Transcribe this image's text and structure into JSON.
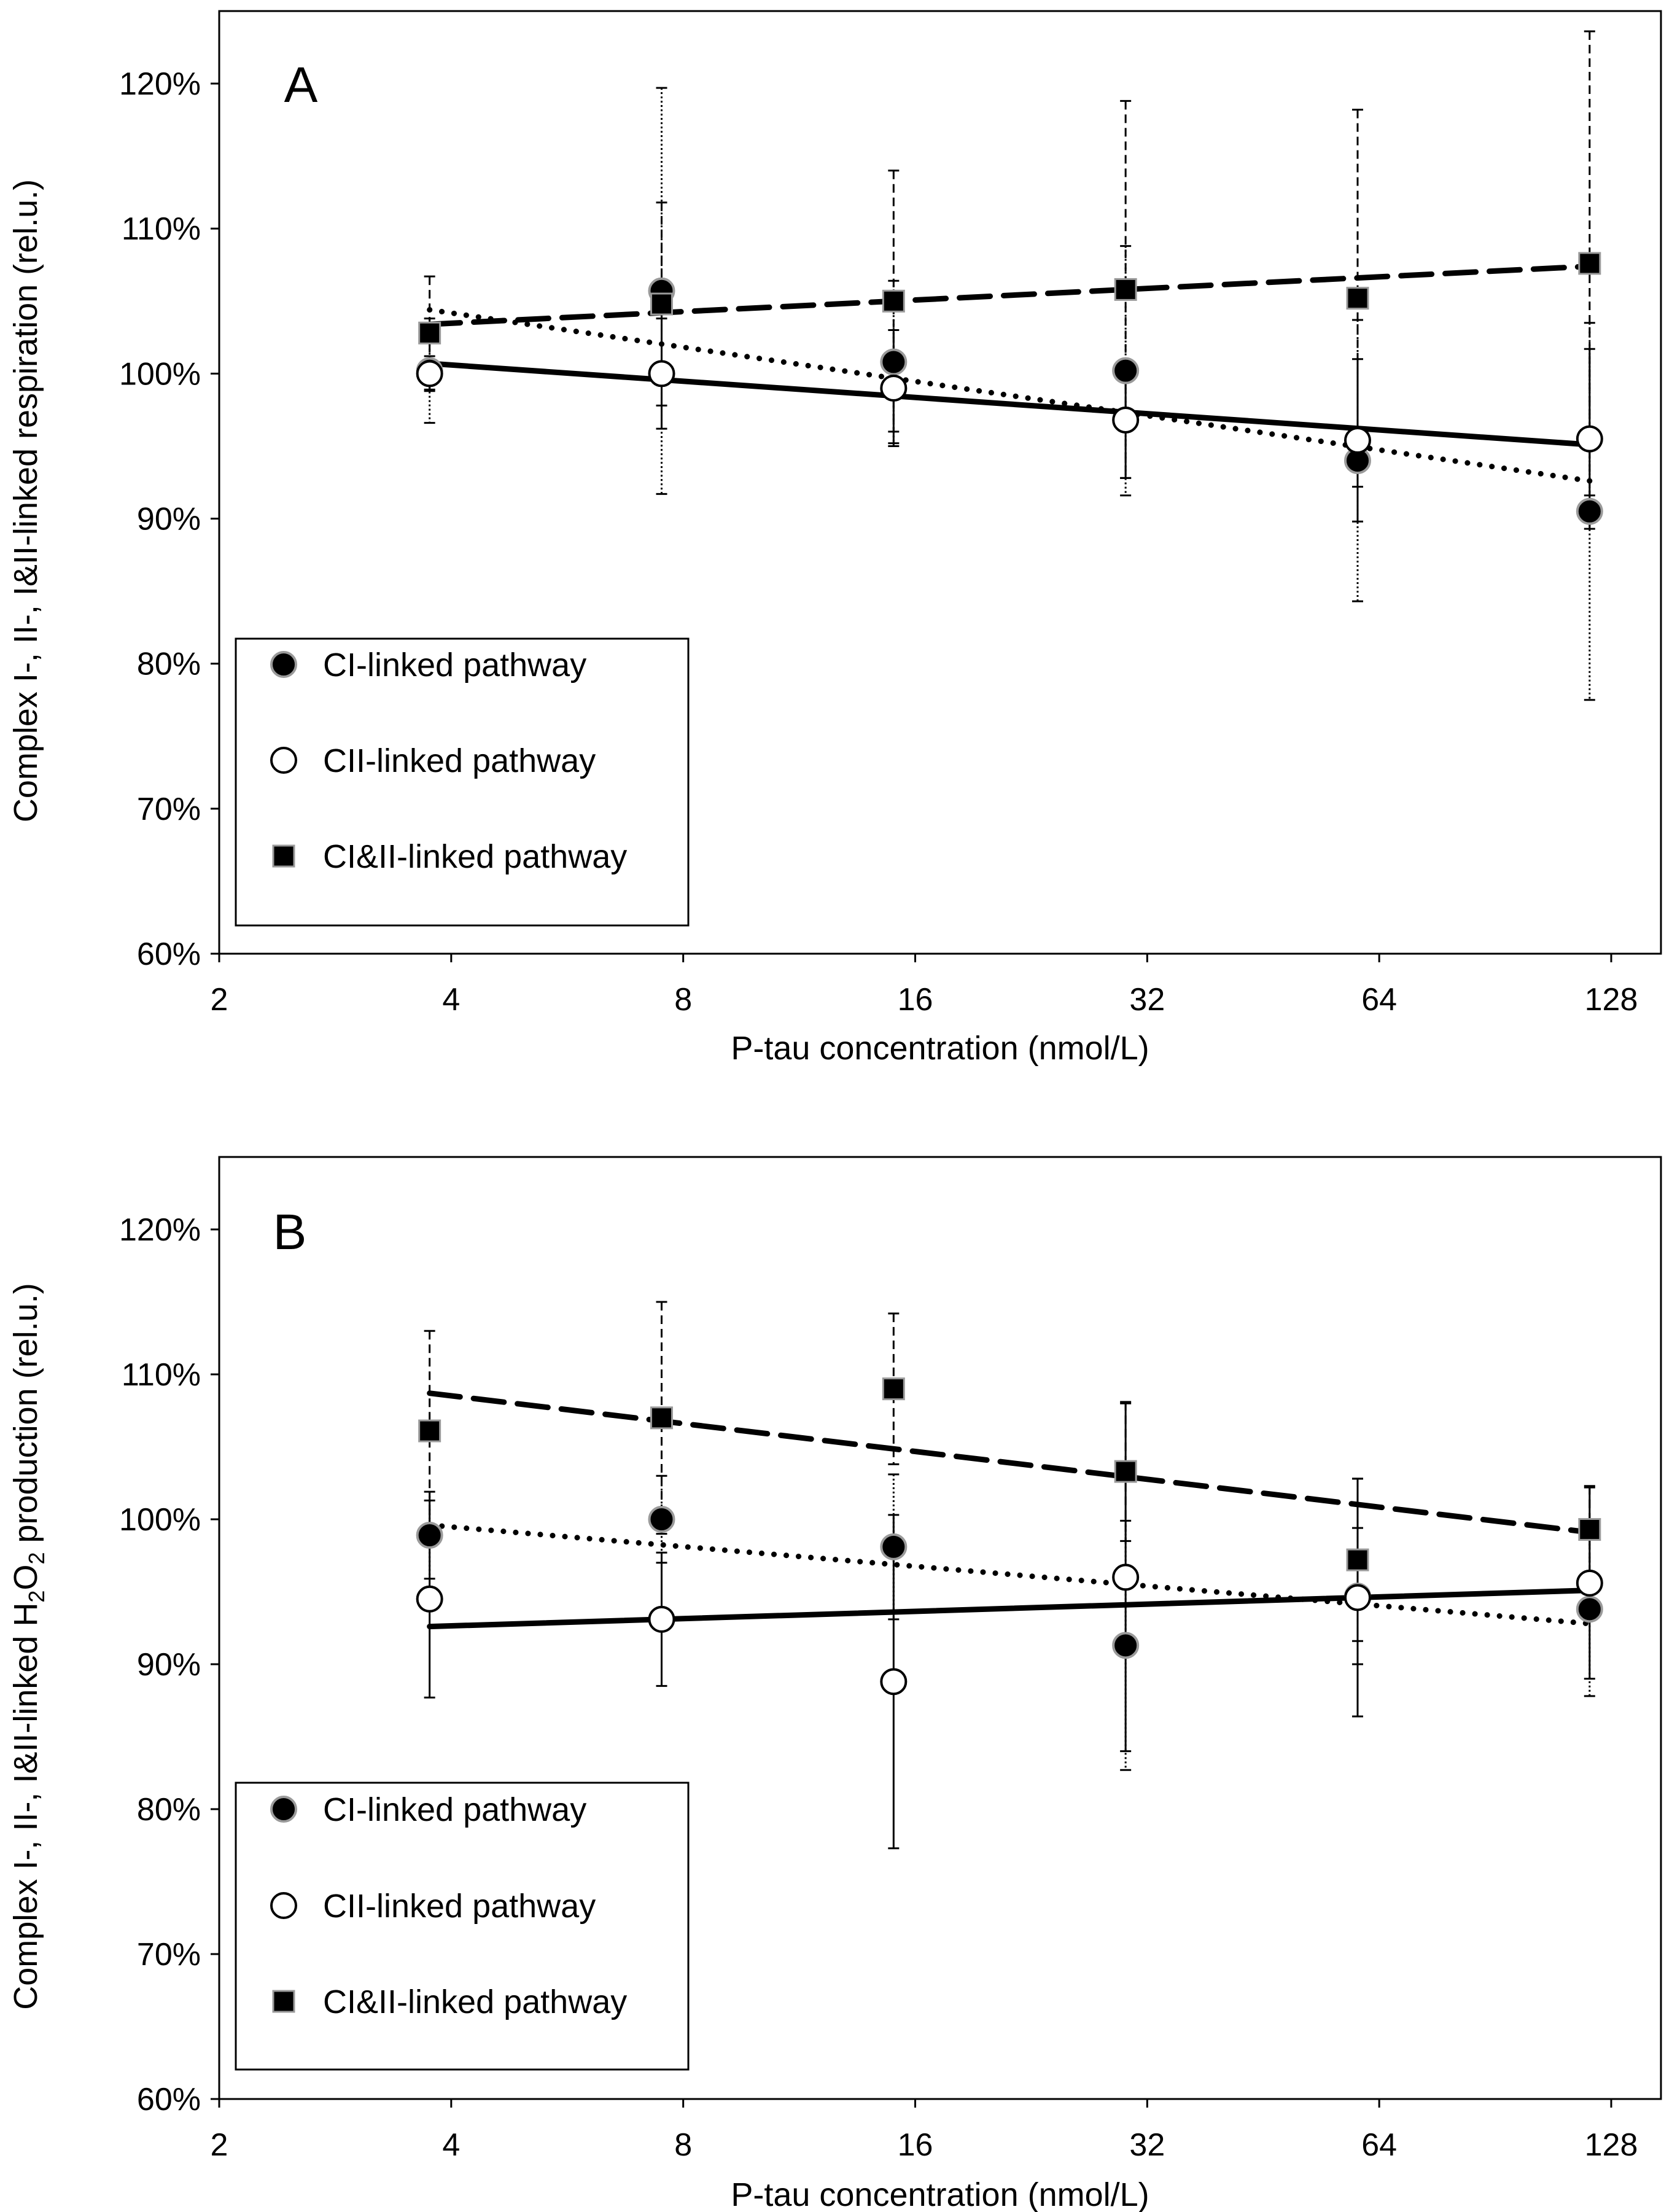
{
  "chart_data": [
    {
      "type": "scatter",
      "panel_label": "A",
      "xlabel": "P-tau concentration (nmol/L)",
      "ylabel_parts": [
        "Complex I-, II-, I&II-linked respiration  (rel.u.)"
      ],
      "x_scale": "log2",
      "xlim": [
        2,
        128
      ],
      "ylim": [
        60,
        125
      ],
      "xticks": [
        2,
        4,
        8,
        16,
        32,
        64,
        128
      ],
      "xtick_labels": [
        "2",
        "4",
        "8",
        "16",
        "32",
        "64",
        "128"
      ],
      "yticks": [
        60,
        70,
        80,
        90,
        100,
        110,
        120
      ],
      "ytick_labels": [
        "60%",
        "70%",
        "80%",
        "90%",
        "100%",
        "110%",
        "120%"
      ],
      "legend_position": "bottom-left",
      "x": [
        3.75,
        7.5,
        15,
        30,
        60,
        120
      ],
      "series": [
        {
          "name": "CI-linked pathway",
          "marker": "filled-circle",
          "trend_style": "dotted",
          "err_style": "dotted",
          "values": [
            100.2,
            105.7,
            100.8,
            100.2,
            94.0,
            90.5
          ],
          "errors": [
            3.6,
            14.0,
            5.6,
            8.6,
            9.7,
            13.0
          ],
          "trend": [
            104.4,
            92.6
          ]
        },
        {
          "name": "CII-linked pathway",
          "marker": "open-circle",
          "trend_style": "solid",
          "err_style": "solid",
          "values": [
            100.0,
            100.0,
            99.0,
            96.8,
            95.4,
            95.5
          ],
          "errors": [
            1.2,
            3.8,
            4.0,
            4.0,
            5.6,
            6.2
          ],
          "trend": [
            100.7,
            95.1
          ]
        },
        {
          "name": "CI&II-linked pathway",
          "marker": "filled-square",
          "trend_style": "dashed",
          "err_style": "dashed",
          "values": [
            102.8,
            104.8,
            105.0,
            105.8,
            105.2,
            107.6
          ],
          "errors": [
            3.9,
            7.0,
            9.0,
            13.0,
            13.0,
            16.0
          ],
          "trend": [
            103.4,
            107.4
          ]
        }
      ]
    },
    {
      "type": "scatter",
      "panel_label": "B",
      "xlabel": "P-tau concentration (nmol/L)",
      "ylabel_parts": [
        "Complex I-, II-, I&II-linked H",
        "2",
        "O",
        "2",
        " production  (rel.u.)"
      ],
      "x_scale": "log2",
      "xlim": [
        2,
        128
      ],
      "ylim": [
        60,
        125
      ],
      "xticks": [
        2,
        4,
        8,
        16,
        32,
        64,
        128
      ],
      "xtick_labels": [
        "2",
        "4",
        "8",
        "16",
        "32",
        "64",
        "128"
      ],
      "yticks": [
        60,
        70,
        80,
        90,
        100,
        110,
        120
      ],
      "ytick_labels": [
        "60%",
        "70%",
        "80%",
        "90%",
        "100%",
        "110%",
        "120%"
      ],
      "legend_position": "bottom-left",
      "x": [
        3.75,
        7.5,
        15,
        30,
        60,
        120
      ],
      "series": [
        {
          "name": "CI-linked pathway",
          "marker": "filled-circle",
          "trend_style": "dotted",
          "err_style": "dotted",
          "values": [
            98.9,
            100.0,
            98.1,
            91.3,
            94.7,
            93.8
          ],
          "errors": [
            3.0,
            3.0,
            5.0,
            8.6,
            4.7,
            6.0
          ],
          "trend": [
            99.6,
            92.8
          ]
        },
        {
          "name": "CII-linked pathway",
          "marker": "open-circle",
          "trend_style": "solid",
          "err_style": "solid",
          "values": [
            94.5,
            93.1,
            88.8,
            96.0,
            94.6,
            95.6
          ],
          "errors": [
            6.8,
            4.6,
            11.5,
            12.0,
            8.2,
            6.6
          ],
          "trend": [
            92.6,
            95.1
          ]
        },
        {
          "name": "CI&II-linked pathway",
          "marker": "filled-square",
          "trend_style": "dashed",
          "err_style": "dashed",
          "values": [
            106.1,
            107.0,
            109.0,
            103.3,
            97.2,
            99.3
          ],
          "errors": [
            6.9,
            8.0,
            5.2,
            4.8,
            5.6,
            3.0
          ],
          "trend": [
            108.7,
            99.1
          ]
        }
      ]
    }
  ]
}
